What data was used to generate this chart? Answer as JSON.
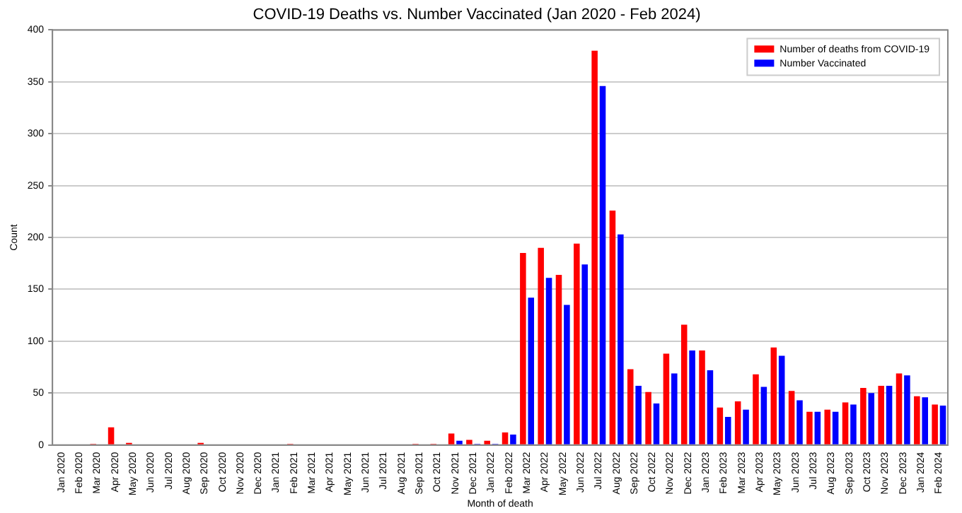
{
  "chart_data": {
    "type": "bar",
    "title": "COVID-19 Deaths vs. Number Vaccinated (Jan 2020 - Feb 2024)",
    "xlabel": "Month of death",
    "ylabel": "Count",
    "categories": [
      "Jan 2020",
      "Feb 2020",
      "Mar 2020",
      "Apr 2020",
      "May 2020",
      "Jun 2020",
      "Jul 2020",
      "Aug 2020",
      "Sep 2020",
      "Oct 2020",
      "Nov 2020",
      "Dec 2020",
      "Jan 2021",
      "Feb 2021",
      "Mar 2021",
      "Apr 2021",
      "May 2021",
      "Jun 2021",
      "Jul 2021",
      "Aug 2021",
      "Sep 2021",
      "Oct 2021",
      "Nov 2021",
      "Dec 2021",
      "Jan 2022",
      "Feb 2022",
      "Mar 2022",
      "Apr 2022",
      "May 2022",
      "Jun 2022",
      "Jul 2022",
      "Aug 2022",
      "Sep 2022",
      "Oct 2022",
      "Nov 2022",
      "Dec 2022",
      "Jan 2023",
      "Feb 2023",
      "Mar 2023",
      "Apr 2023",
      "May 2023",
      "Jun 2023",
      "Jul 2023",
      "Aug 2023",
      "Sep 2023",
      "Oct 2023",
      "Nov 2023",
      "Dec 2023",
      "Jan 2024",
      "Feb 2024"
    ],
    "series": [
      {
        "name": "Number of deaths from COVID-19",
        "color": "#ff0000",
        "values": [
          0,
          0,
          1,
          17,
          2,
          0,
          0,
          0,
          2,
          0,
          0,
          0,
          0,
          1,
          0,
          0,
          0,
          0,
          0,
          0,
          1,
          1,
          11,
          5,
          4,
          12,
          185,
          190,
          164,
          194,
          380,
          226,
          73,
          51,
          88,
          116,
          91,
          36,
          42,
          68,
          94,
          52,
          32,
          34,
          41,
          55,
          57,
          69,
          47,
          39
        ]
      },
      {
        "name": "Number Vaccinated",
        "color": "#0000ff",
        "values": [
          0,
          0,
          0,
          0,
          0,
          0,
          0,
          0,
          0,
          0,
          0,
          0,
          0,
          0,
          0,
          0,
          0,
          0,
          0,
          0,
          0,
          0,
          4,
          1,
          1,
          10,
          142,
          161,
          135,
          174,
          346,
          203,
          57,
          40,
          69,
          91,
          72,
          27,
          34,
          56,
          86,
          43,
          32,
          32,
          39,
          50,
          57,
          67,
          46,
          38
        ]
      }
    ],
    "ylim": [
      0,
      400
    ],
    "yticks": [
      0,
      50,
      100,
      150,
      200,
      250,
      300,
      350,
      400
    ],
    "grid": "y",
    "legend": "top right"
  }
}
